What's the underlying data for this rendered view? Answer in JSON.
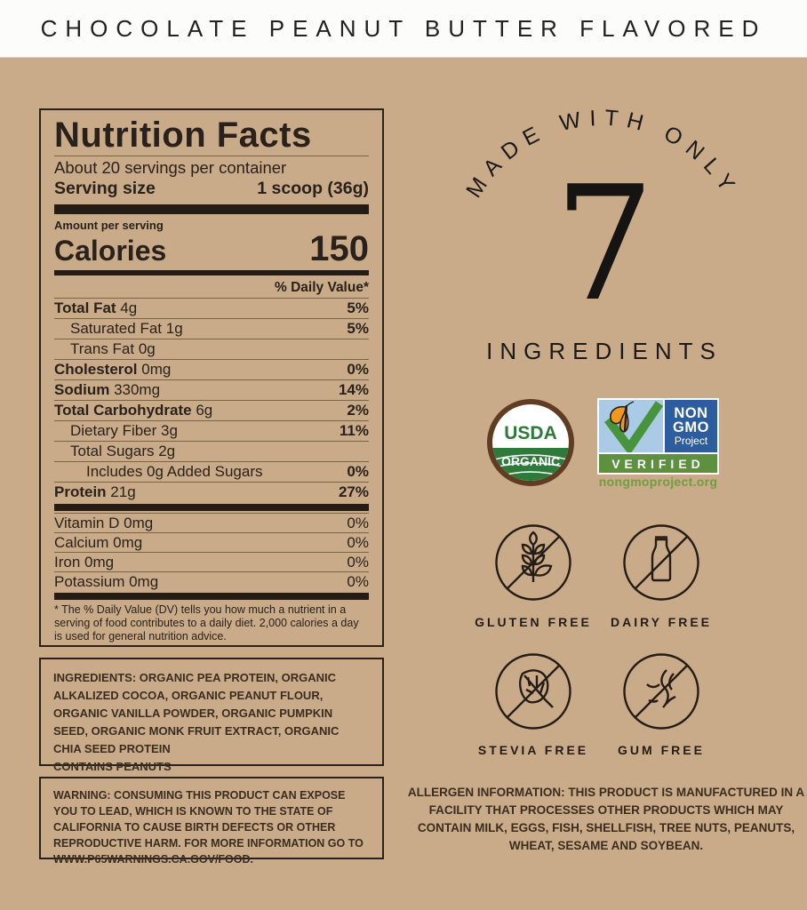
{
  "colors": {
    "background": "#c9ab8a",
    "ink": "#241c15",
    "panel_line": "#7a6348",
    "usda_green": "#2d7a3a",
    "usda_brown": "#5f3c22",
    "nongmo_blue": "#2c5d9f",
    "nongmo_sky": "#aacbe6",
    "nongmo_green": "#5d9140",
    "nongmo_url_green": "#6f9e3f",
    "butterfly_orange": "#f2991c"
  },
  "header": {
    "title": "CHOCOLATE PEANUT BUTTER FLAVORED"
  },
  "nutrition_facts": {
    "title": "Nutrition Facts",
    "servings_per_container": "About 20 servings per container",
    "serving_size_label": "Serving size",
    "serving_size_value": "1 scoop (36g)",
    "amount_per_serving_label": "Amount per serving",
    "calories_label": "Calories",
    "calories_value": "150",
    "daily_value_header": "% Daily Value*",
    "rows": [
      {
        "name": "Total Fat",
        "amount": "4g",
        "dv": "5%",
        "bold": true,
        "indent": 0
      },
      {
        "name": "Saturated Fat",
        "amount": "1g",
        "dv": "5%",
        "bold": false,
        "indent": 1
      },
      {
        "name": "Trans Fat",
        "amount": "0g",
        "dv": "",
        "bold": false,
        "indent": 1
      },
      {
        "name": "Cholesterol",
        "amount": "0mg",
        "dv": "0%",
        "bold": true,
        "indent": 0
      },
      {
        "name": "Sodium",
        "amount": "330mg",
        "dv": "14%",
        "bold": true,
        "indent": 0
      },
      {
        "name": "Total Carbohydrate",
        "amount": "6g",
        "dv": "2%",
        "bold": true,
        "indent": 0
      },
      {
        "name": "Dietary Fiber",
        "amount": "3g",
        "dv": "11%",
        "bold": false,
        "indent": 1
      },
      {
        "name": "Total Sugars",
        "amount": "2g",
        "dv": "",
        "bold": false,
        "indent": 1
      },
      {
        "name": "Includes 0g Added Sugars",
        "amount": "",
        "dv": "0%",
        "bold": false,
        "indent": 2
      },
      {
        "name": "Protein",
        "amount": "21g",
        "dv": "27%",
        "bold": true,
        "indent": 0
      }
    ],
    "micronutrients": [
      {
        "name": "Vitamin D",
        "amount": "0mg",
        "dv": "0%"
      },
      {
        "name": "Calcium",
        "amount": "0mg",
        "dv": "0%"
      },
      {
        "name": "Iron",
        "amount": "0mg",
        "dv": "0%"
      },
      {
        "name": "Potassium",
        "amount": "0mg",
        "dv": "0%"
      }
    ],
    "footnote": "* The % Daily Value (DV) tells you how much a nutrient in a serving of food contributes to a daily diet. 2,000 calories a day is used for general nutrition advice."
  },
  "ingredients_box": {
    "text": "INGREDIENTS: ORGANIC PEA PROTEIN, ORGANIC ALKALIZED COCOA, ORGANIC PEANUT FLOUR, ORGANIC VANILLA POWDER, ORGANIC PUMPKIN SEED, ORGANIC MONK FRUIT EXTRACT, ORGANIC CHIA SEED PROTEIN",
    "contains": "CONTAINS PEANUTS"
  },
  "warning_box": {
    "text": "WARNING: CONSUMING THIS PRODUCT CAN EXPOSE YOU TO LEAD, WHICH IS KNOWN TO THE STATE OF CALIFORNIA TO CAUSE BIRTH DEFECTS OR OTHER REPRODUCTIVE HARM. FOR MORE INFORMATION GO TO WWW.P65WARNINGS.CA.GOV/FOOD."
  },
  "made_with": {
    "arc_text": "MADE WITH ONLY",
    "number": "7",
    "label": "INGREDIENTS"
  },
  "badges": {
    "usda": {
      "line1": "USDA",
      "line2": "ORGANIC"
    },
    "non_gmo": {
      "line1": "NON",
      "line2": "GMO",
      "line3": "Project",
      "verified": "VERIFIED",
      "url": "nongmoproject.org"
    }
  },
  "free_badges": [
    {
      "label": "GLUTEN FREE",
      "icon": "wheat-icon"
    },
    {
      "label": "DAIRY FREE",
      "icon": "milk-bottle-icon"
    },
    {
      "label": "STEVIA FREE",
      "icon": "stevia-leaf-icon"
    },
    {
      "label": "GUM FREE",
      "icon": "gum-strands-icon"
    }
  ],
  "allergen": {
    "text": "ALLERGEN INFORMATION: THIS PRODUCT IS MANUFACTURED IN A FACILITY THAT PROCESSES OTHER PRODUCTS WHICH MAY CONTAIN MILK, EGGS, FISH, SHELLFISH, TREE NUTS, PEANUTS, WHEAT, SESAME AND SOYBEAN."
  }
}
